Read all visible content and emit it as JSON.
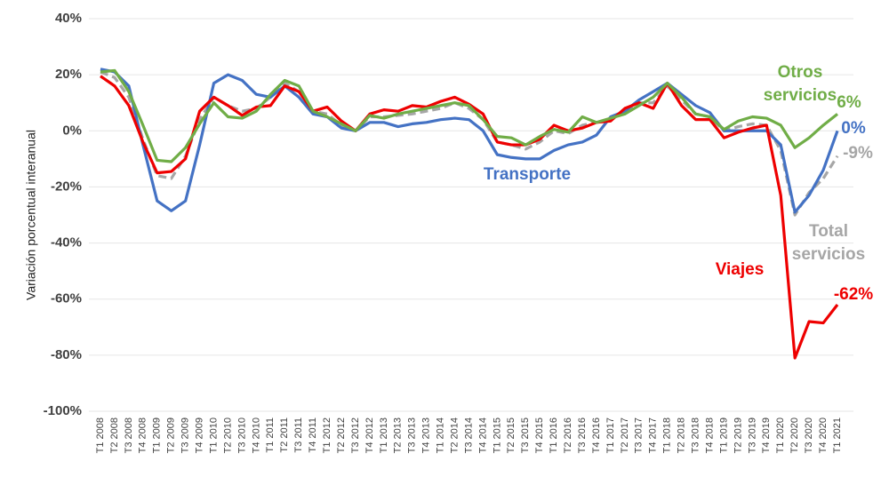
{
  "chart_data": {
    "type": "line",
    "y_label": "Variación porcentual interanual",
    "categories": [
      "T1 2008",
      "T2 2008",
      "T3 2008",
      "T4 2008",
      "T1 2009",
      "T2 2009",
      "T3 2009",
      "T4 2009",
      "T1 2010",
      "T2 2010",
      "T3 2010",
      "T4 2010",
      "T1 2011",
      "T2 2011",
      "T3 2011",
      "T4 2011",
      "T1 2012",
      "T2 2012",
      "T3 2012",
      "T4 2012",
      "T1 2013",
      "T2 2013",
      "T3 2013",
      "T4 2013",
      "T1 2014",
      "T2 2014",
      "T3 2014",
      "T4 2014",
      "T1 2015",
      "T2 2015",
      "T3 2015",
      "T4 2015",
      "T1 2016",
      "T2 2016",
      "T3 2016",
      "T4 2016",
      "T1 2017",
      "T2 2017",
      "T3 2017",
      "T4 2017",
      "T1 2018",
      "T2 2018",
      "T3 2018",
      "T4 2018",
      "T1 2019",
      "T2 2019",
      "T3 2019",
      "T4 2019",
      "T1 2020",
      "T2 2020",
      "T3 2020",
      "T4 2020",
      "T1 2021"
    ],
    "ylim": [
      -100,
      40
    ],
    "yticks": [
      {
        "value": -100,
        "label": "-100%"
      },
      {
        "value": -80,
        "label": "-80%"
      },
      {
        "value": -60,
        "label": "-60%"
      },
      {
        "value": -40,
        "label": "-40%"
      },
      {
        "value": -20,
        "label": "-20%"
      },
      {
        "value": 0,
        "label": "0%"
      },
      {
        "value": 20,
        "label": "20%"
      },
      {
        "value": 40,
        "label": "40%"
      }
    ],
    "grid": true,
    "series": [
      {
        "name": "Total servicios",
        "color": "#a6a6a6",
        "dashed": true,
        "end_label": "-9%",
        "values": [
          21,
          19,
          12,
          -3,
          -16,
          -17,
          -9,
          4,
          12,
          9,
          7,
          8,
          12,
          17,
          14,
          7,
          6,
          2,
          0,
          5,
          5,
          5.5,
          6,
          7,
          8,
          10,
          8,
          4,
          -4,
          -5,
          -6.5,
          -4,
          0,
          -1,
          2,
          3,
          4,
          7,
          10,
          10,
          16,
          11,
          6,
          5,
          0,
          1.5,
          2.5,
          2,
          -7,
          -30,
          -22,
          -17,
          -9
        ]
      },
      {
        "name": "Transporte",
        "color": "#4472c4",
        "end_label": "0%",
        "values": [
          22,
          21,
          16,
          -5,
          -25,
          -28.5,
          -25,
          -5,
          17,
          20,
          18,
          13,
          12,
          16,
          12,
          6,
          5,
          1,
          0,
          3,
          3,
          1.5,
          2.5,
          3,
          4,
          4.5,
          4,
          0,
          -8.5,
          -9.5,
          -10,
          -10,
          -7,
          -5,
          -4,
          -1.5,
          5,
          7,
          11,
          14,
          17,
          13,
          9,
          6.5,
          0,
          0,
          0,
          0,
          -5,
          -29,
          -23,
          -14,
          0
        ]
      },
      {
        "name": "Viajes",
        "color": "#ee0000",
        "end_label": "-62%",
        "values": [
          19.5,
          16,
          9,
          -4,
          -15,
          -14.5,
          -10,
          7,
          12,
          9,
          5.5,
          8.5,
          9,
          16,
          14,
          7,
          8.5,
          3.5,
          0,
          6,
          7.5,
          7,
          9,
          8.5,
          10.5,
          12,
          9.5,
          6,
          -4,
          -5,
          -5,
          -3,
          2,
          0,
          1,
          3,
          3.5,
          8,
          10,
          8,
          17,
          9,
          4,
          4,
          -2.5,
          -0.5,
          1,
          2,
          -23,
          -81,
          -68,
          -68.5,
          -62
        ]
      },
      {
        "name": "Otros servicios",
        "color": "#70ad47",
        "end_label": "6%",
        "values": [
          21,
          21.5,
          14,
          2,
          -10.5,
          -11,
          -6,
          2.5,
          10,
          5,
          4.5,
          7,
          13,
          18,
          16,
          7,
          5,
          2.5,
          0,
          5.5,
          4.5,
          6,
          7,
          8,
          9,
          10,
          9,
          4,
          -2,
          -2.5,
          -5,
          -2,
          0.5,
          -0.5,
          5,
          3,
          4.5,
          6,
          9,
          12,
          17,
          12,
          6,
          5,
          0.5,
          3.5,
          5,
          4.5,
          2,
          -6,
          -2.5,
          2,
          6
        ]
      }
    ]
  }
}
